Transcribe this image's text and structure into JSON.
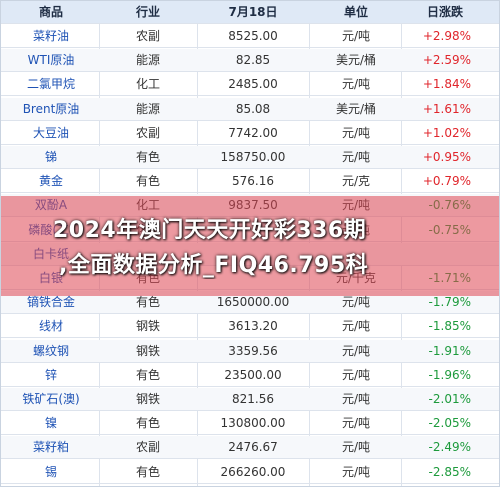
{
  "table": {
    "headers": [
      "商品",
      "行业",
      "7月18日",
      "单位",
      "日涨跌"
    ],
    "rows": [
      {
        "name": "菜籽油",
        "industry": "农副",
        "price": "8525.00",
        "unit": "元/吨",
        "change": "+2.98%",
        "dir": "up"
      },
      {
        "name": "WTI原油",
        "industry": "能源",
        "price": "82.85",
        "unit": "美元/桶",
        "change": "+2.59%",
        "dir": "up"
      },
      {
        "name": "二氯甲烷",
        "industry": "化工",
        "price": "2485.00",
        "unit": "元/吨",
        "change": "+1.84%",
        "dir": "up"
      },
      {
        "name": "Brent原油",
        "industry": "能源",
        "price": "85.08",
        "unit": "美元/桶",
        "change": "+1.61%",
        "dir": "up"
      },
      {
        "name": "大豆油",
        "industry": "农副",
        "price": "7742.00",
        "unit": "元/吨",
        "change": "+1.02%",
        "dir": "up"
      },
      {
        "name": "锑",
        "industry": "有色",
        "price": "158750.00",
        "unit": "元/吨",
        "change": "+0.95%",
        "dir": "up"
      },
      {
        "name": "黄金",
        "industry": "有色",
        "price": "576.16",
        "unit": "元/克",
        "change": "+0.79%",
        "dir": "up"
      },
      {
        "name": "双酚A",
        "industry": "化工",
        "price": "9837.50",
        "unit": "元/吨",
        "change": "-0.76%",
        "dir": "down"
      },
      {
        "name": "磷酸(工)",
        "industry": "化工",
        "price": "",
        "unit": "元/吨",
        "change": "-0.75%",
        "dir": "down"
      },
      {
        "name": "白卡纸",
        "industry": "",
        "price": "",
        "unit": "",
        "change": "",
        "dir": "down"
      },
      {
        "name": "白银",
        "industry": "有色",
        "price": "",
        "unit": "元/千克",
        "change": "-1.71%",
        "dir": "down"
      },
      {
        "name": "镝铁合金",
        "industry": "有色",
        "price": "1650000.00",
        "unit": "元/吨",
        "change": "-1.79%",
        "dir": "down"
      },
      {
        "name": "线材",
        "industry": "钢铁",
        "price": "3613.20",
        "unit": "元/吨",
        "change": "-1.85%",
        "dir": "down"
      },
      {
        "name": "螺纹钢",
        "industry": "钢铁",
        "price": "3359.56",
        "unit": "元/吨",
        "change": "-1.91%",
        "dir": "down"
      },
      {
        "name": "锌",
        "industry": "有色",
        "price": "23500.00",
        "unit": "元/吨",
        "change": "-1.96%",
        "dir": "down"
      },
      {
        "name": "铁矿石(澳)",
        "industry": "钢铁",
        "price": "821.56",
        "unit": "元/吨",
        "change": "-2.01%",
        "dir": "down"
      },
      {
        "name": "镍",
        "industry": "有色",
        "price": "130800.00",
        "unit": "元/吨",
        "change": "-2.05%",
        "dir": "down"
      },
      {
        "name": "菜籽粕",
        "industry": "农副",
        "price": "2476.67",
        "unit": "元/吨",
        "change": "-2.49%",
        "dir": "down"
      },
      {
        "name": "锡",
        "industry": "有色",
        "price": "266260.00",
        "unit": "元/吨",
        "change": "-2.85%",
        "dir": "down"
      }
    ]
  },
  "overlay": {
    "line1": "2024年澳门天天开好彩336期",
    "line2": ",全面数据分析_FIQ46.795科"
  },
  "colors": {
    "header_bg": "#dfe9f6",
    "name_blue": "#1f53b5",
    "up_red": "#e0252b",
    "down_green": "#1d9a3c",
    "overlay_band": "#de4652"
  }
}
